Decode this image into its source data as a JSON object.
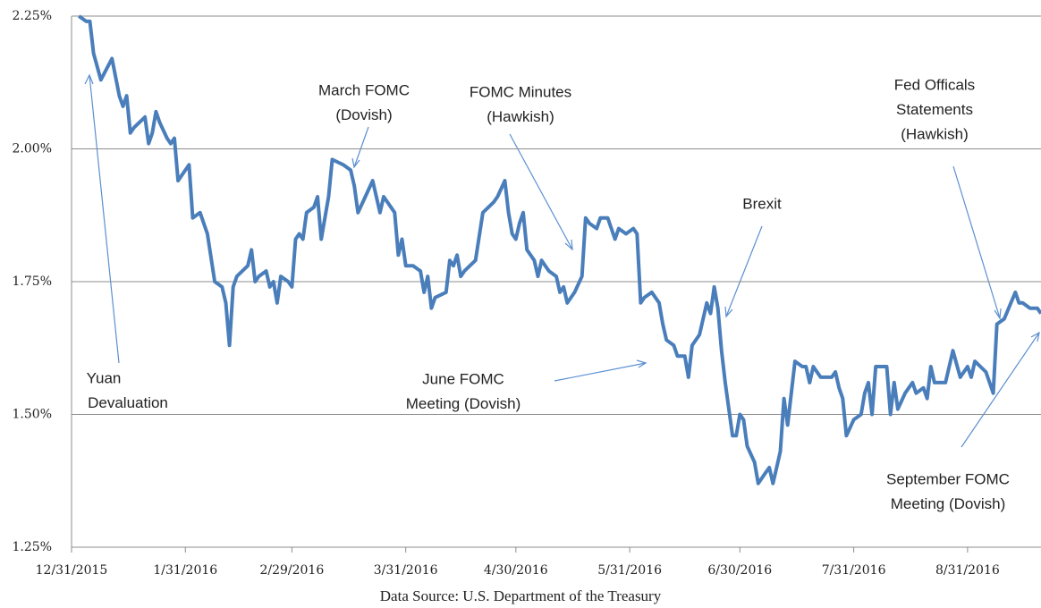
{
  "chart_data": {
    "type": "line",
    "color": "#4a7ebb",
    "grid": true,
    "xlim": [
      "2015-12-31",
      "2016-09-20"
    ],
    "xticks": [
      {
        "value": "2015-12-31",
        "label": "12/31/2015"
      },
      {
        "value": "2016-01-31",
        "label": "1/31/2016"
      },
      {
        "value": "2016-02-29",
        "label": "2/29/2016"
      },
      {
        "value": "2016-03-31",
        "label": "3/31/2016"
      },
      {
        "value": "2016-04-30",
        "label": "4/30/2016"
      },
      {
        "value": "2016-05-31",
        "label": "5/31/2016"
      },
      {
        "value": "2016-06-30",
        "label": "6/30/2016"
      },
      {
        "value": "2016-07-31",
        "label": "7/31/2016"
      },
      {
        "value": "2016-08-31",
        "label": "8/31/2016"
      }
    ],
    "ylim": [
      1.25,
      2.25
    ],
    "yticks": [
      {
        "value": 1.25,
        "label": "1.25%"
      },
      {
        "value": 1.5,
        "label": "1.50%"
      },
      {
        "value": 1.75,
        "label": "1.75%"
      },
      {
        "value": 2.0,
        "label": "2.00%"
      },
      {
        "value": 2.25,
        "label": "2.25%"
      }
    ],
    "x": [
      "2016-01-02",
      "2016-01-04",
      "2016-01-05",
      "2016-01-06",
      "2016-01-08",
      "2016-01-11",
      "2016-01-13",
      "2016-01-14",
      "2016-01-15",
      "2016-01-16",
      "2016-01-17",
      "2016-01-20",
      "2016-01-21",
      "2016-01-22",
      "2016-01-23",
      "2016-01-24",
      "2016-01-26",
      "2016-01-27",
      "2016-01-28",
      "2016-01-29",
      "2016-02-01",
      "2016-02-02",
      "2016-02-04",
      "2016-02-06",
      "2016-02-08",
      "2016-02-10",
      "2016-02-11",
      "2016-02-12",
      "2016-02-13",
      "2016-02-14",
      "2016-02-17",
      "2016-02-18",
      "2016-02-19",
      "2016-02-20",
      "2016-02-22",
      "2016-02-23",
      "2016-02-24",
      "2016-02-25",
      "2016-02-26",
      "2016-02-28",
      "2016-02-29",
      "2016-03-01",
      "2016-03-02",
      "2016-03-03",
      "2016-03-04",
      "2016-03-06",
      "2016-03-07",
      "2016-03-08",
      "2016-03-10",
      "2016-03-11",
      "2016-03-14",
      "2016-03-16",
      "2016-03-17",
      "2016-03-18",
      "2016-03-20",
      "2016-03-22",
      "2016-03-24",
      "2016-03-25",
      "2016-03-27",
      "2016-03-28",
      "2016-03-29",
      "2016-03-30",
      "2016-03-31",
      "2016-04-02",
      "2016-04-04",
      "2016-04-05",
      "2016-04-06",
      "2016-04-07",
      "2016-04-08",
      "2016-04-11",
      "2016-04-12",
      "2016-04-13",
      "2016-04-14",
      "2016-04-15",
      "2016-04-16",
      "2016-04-19",
      "2016-04-21",
      "2016-04-24",
      "2016-04-25",
      "2016-04-27",
      "2016-04-28",
      "2016-04-29",
      "2016-04-30",
      "2016-05-01",
      "2016-05-02",
      "2016-05-03",
      "2016-05-05",
      "2016-05-06",
      "2016-05-07",
      "2016-05-08",
      "2016-05-09",
      "2016-05-11",
      "2016-05-12",
      "2016-05-13",
      "2016-05-14",
      "2016-05-16",
      "2016-05-18",
      "2016-05-19",
      "2016-05-20",
      "2016-05-22",
      "2016-05-23",
      "2016-05-25",
      "2016-05-27",
      "2016-05-28",
      "2016-05-30",
      "2016-06-01",
      "2016-06-02",
      "2016-06-03",
      "2016-06-04",
      "2016-06-06",
      "2016-06-08",
      "2016-06-09",
      "2016-06-10",
      "2016-06-12",
      "2016-06-13",
      "2016-06-15",
      "2016-06-16",
      "2016-06-17",
      "2016-06-19",
      "2016-06-21",
      "2016-06-22",
      "2016-06-23",
      "2016-06-24",
      "2016-06-25",
      "2016-06-26",
      "2016-06-27",
      "2016-06-28",
      "2016-06-29",
      "2016-06-30",
      "2016-07-01",
      "2016-07-02",
      "2016-07-04",
      "2016-07-05",
      "2016-07-07",
      "2016-07-08",
      "2016-07-09",
      "2016-07-11",
      "2016-07-12",
      "2016-07-13",
      "2016-07-15",
      "2016-07-17",
      "2016-07-18",
      "2016-07-19",
      "2016-07-20",
      "2016-07-22",
      "2016-07-25",
      "2016-07-26",
      "2016-07-27",
      "2016-07-28",
      "2016-07-29",
      "2016-07-31",
      "2016-08-02",
      "2016-08-03",
      "2016-08-04",
      "2016-08-05",
      "2016-08-06",
      "2016-08-09",
      "2016-08-10",
      "2016-08-11",
      "2016-08-12",
      "2016-08-14",
      "2016-08-16",
      "2016-08-17",
      "2016-08-19",
      "2016-08-20",
      "2016-08-21",
      "2016-08-22",
      "2016-08-25",
      "2016-08-27",
      "2016-08-29",
      "2016-08-31",
      "2016-09-01",
      "2016-09-02",
      "2016-09-05",
      "2016-09-07",
      "2016-09-08",
      "2016-09-10",
      "2016-09-13",
      "2016-09-14",
      "2016-09-15",
      "2016-09-17",
      "2016-09-19",
      "2016-09-20"
    ],
    "values": [
      2.25,
      2.24,
      2.24,
      2.18,
      2.13,
      2.17,
      2.1,
      2.08,
      2.1,
      2.03,
      2.04,
      2.06,
      2.01,
      2.03,
      2.07,
      2.05,
      2.02,
      2.01,
      2.02,
      1.94,
      1.97,
      1.87,
      1.88,
      1.84,
      1.75,
      1.74,
      1.71,
      1.63,
      1.74,
      1.76,
      1.78,
      1.81,
      1.75,
      1.76,
      1.77,
      1.74,
      1.75,
      1.71,
      1.76,
      1.75,
      1.74,
      1.83,
      1.84,
      1.83,
      1.88,
      1.89,
      1.91,
      1.83,
      1.91,
      1.98,
      1.97,
      1.96,
      1.93,
      1.88,
      1.91,
      1.94,
      1.88,
      1.91,
      1.89,
      1.88,
      1.8,
      1.83,
      1.78,
      1.78,
      1.77,
      1.73,
      1.76,
      1.7,
      1.72,
      1.73,
      1.79,
      1.78,
      1.8,
      1.76,
      1.77,
      1.79,
      1.88,
      1.9,
      1.91,
      1.94,
      1.88,
      1.84,
      1.83,
      1.86,
      1.88,
      1.81,
      1.79,
      1.76,
      1.79,
      1.78,
      1.77,
      1.76,
      1.73,
      1.74,
      1.71,
      1.73,
      1.76,
      1.87,
      1.86,
      1.85,
      1.87,
      1.87,
      1.83,
      1.85,
      1.84,
      1.85,
      1.84,
      1.71,
      1.72,
      1.73,
      1.71,
      1.67,
      1.64,
      1.63,
      1.61,
      1.61,
      1.57,
      1.63,
      1.65,
      1.71,
      1.69,
      1.74,
      1.7,
      1.62,
      1.56,
      1.51,
      1.46,
      1.46,
      1.5,
      1.49,
      1.44,
      1.41,
      1.37,
      1.39,
      1.4,
      1.37,
      1.43,
      1.53,
      1.48,
      1.6,
      1.59,
      1.59,
      1.56,
      1.59,
      1.57,
      1.57,
      1.58,
      1.55,
      1.53,
      1.46,
      1.49,
      1.5,
      1.54,
      1.56,
      1.5,
      1.59,
      1.59,
      1.5,
      1.56,
      1.51,
      1.54,
      1.56,
      1.54,
      1.55,
      1.53,
      1.59,
      1.56,
      1.56,
      1.62,
      1.57,
      1.59,
      1.57,
      1.6,
      1.58,
      1.54,
      1.67,
      1.68,
      1.73,
      1.71,
      1.71,
      1.7,
      1.7,
      1.69
    ],
    "annotations": [
      {
        "text": [
          "Yuan",
          "Devaluation"
        ]
      },
      {
        "text": [
          "March FOMC",
          "(Dovish)"
        ]
      },
      {
        "text": [
          "FOMC Minutes",
          "(Hawkish)"
        ]
      },
      {
        "text": [
          "Brexit"
        ]
      },
      {
        "text": [
          "June FOMC",
          "Meeting (Dovish)"
        ]
      },
      {
        "text": [
          "Fed Officals",
          "Statements",
          "(Hawkish)"
        ]
      },
      {
        "text": [
          "September FOMC",
          "Meeting (Dovish)"
        ]
      }
    ],
    "source": "Data Source:  U.S. Department of the Treasury"
  }
}
